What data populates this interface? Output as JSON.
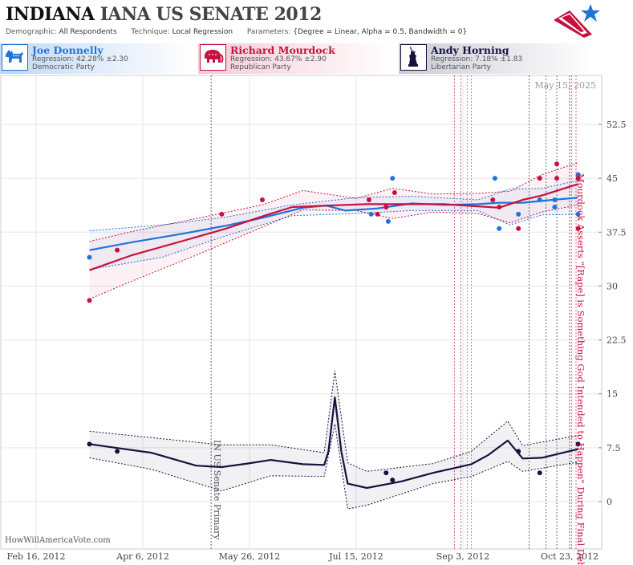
{
  "header": {
    "state": "INDIANA",
    "race": "IANA US SENATE 2012",
    "demographic_label": "Demographic:",
    "demographic_value": "All Respondents",
    "technique_label": "Technique:",
    "technique_value": "Local Regression",
    "parameters_label": "Parameters:",
    "parameters_value": "{Degree = Linear, Alpha = 0.5, Bandwidth = 0}"
  },
  "candidates": [
    {
      "name": "Joe Donnelly",
      "regression": "Regression: 42.28% ±2.30",
      "party": "Democratic Party",
      "color": "#1f74d9",
      "icon": "donkey-icon"
    },
    {
      "name": "Richard Mourdock",
      "regression": "Regression: 43.67% ±2.90",
      "party": "Republican Party",
      "color": "#c8103e",
      "icon": "elephant-icon"
    },
    {
      "name": "Andy Horning",
      "regression": "Regression: 7.18% ±1.83",
      "party": "Libertarian Party",
      "color": "#14143e",
      "icon": "statue-of-liberty-icon"
    }
  ],
  "watermark": "HowWillAmericaVote.com",
  "date_stamp": "May 15, 2025",
  "chart_data": {
    "type": "line",
    "x_axis": {
      "type": "date",
      "range": [
        "2012-02-16",
        "2012-11-04"
      ],
      "tick_labels": [
        "Feb 16, 2012",
        "Apr 6, 2012",
        "May 26, 2012",
        "Jul 15, 2012",
        "Sep 3, 2012",
        "Oct 23, 2012"
      ],
      "ticks": [
        "2012-02-16",
        "2012-04-06",
        "2012-05-26",
        "2012-07-15",
        "2012-09-03",
        "2012-10-23"
      ]
    },
    "y_axis": {
      "range": [
        -4.5,
        59
      ],
      "tick_values": [
        0,
        7.5,
        15,
        22.5,
        30,
        37.5,
        45,
        52.5
      ],
      "tick_labels": [
        "0",
        "7.5",
        "15",
        "22.5",
        "30",
        "37.5",
        "45",
        "52.5"
      ],
      "position": "right"
    },
    "grid": true,
    "events": [
      {
        "date": "2012-05-08",
        "label": "IN US Senate Primary",
        "color": "#444444"
      },
      {
        "date": "2012-10-23",
        "label": "Mourdock Asserts \"[Rape] is Something God Intended to Happen\" During Final Debate",
        "color": "#c8103e"
      }
    ],
    "poll_dates": [
      "2012-08-30",
      "2012-09-02",
      "2012-09-05",
      "2012-09-07",
      "2012-10-04",
      "2012-10-12",
      "2012-10-17",
      "2012-10-24",
      "2012-10-26"
    ],
    "series": [
      {
        "name": "Joe Donnelly",
        "color": "#1f74d9",
        "points": [
          [
            "2012-03-12",
            34
          ],
          [
            "2012-07-22",
            40
          ],
          [
            "2012-07-29",
            41
          ],
          [
            "2012-07-30",
            39
          ],
          [
            "2012-08-01",
            45
          ],
          [
            "2012-09-18",
            45
          ],
          [
            "2012-09-20",
            38
          ],
          [
            "2012-09-29",
            40
          ],
          [
            "2012-10-09",
            42
          ],
          [
            "2012-10-16",
            42
          ],
          [
            "2012-10-16",
            41
          ],
          [
            "2012-10-27",
            45.5
          ],
          [
            "2012-10-27",
            40
          ]
        ],
        "trend": [
          [
            "2012-03-12",
            35
          ],
          [
            "2012-04-01",
            36.1
          ],
          [
            "2012-04-25",
            37.3
          ],
          [
            "2012-05-15",
            38.4
          ],
          [
            "2012-06-01",
            39.5
          ],
          [
            "2012-06-20",
            40.9
          ],
          [
            "2012-07-01",
            41.2
          ],
          [
            "2012-07-10",
            40.5
          ],
          [
            "2012-07-25",
            40.8
          ],
          [
            "2012-08-10",
            41.5
          ],
          [
            "2012-08-25",
            41.3
          ],
          [
            "2012-09-10",
            41.4
          ],
          [
            "2012-09-20",
            41.6
          ],
          [
            "2012-10-01",
            41.6
          ],
          [
            "2012-10-15",
            42
          ],
          [
            "2012-10-27",
            42.3
          ]
        ],
        "band_upper": [
          [
            "2012-03-12",
            37.7
          ],
          [
            "2012-04-15",
            38.5
          ],
          [
            "2012-05-15",
            39.6
          ],
          [
            "2012-06-15",
            41.3
          ],
          [
            "2012-07-15",
            42.3
          ],
          [
            "2012-08-10",
            42.5
          ],
          [
            "2012-09-10",
            42
          ],
          [
            "2012-09-25",
            43.5
          ],
          [
            "2012-10-10",
            43.6
          ],
          [
            "2012-10-27",
            44.7
          ]
        ],
        "band_lower": [
          [
            "2012-03-12",
            32.3
          ],
          [
            "2012-04-15",
            34
          ],
          [
            "2012-05-15",
            37
          ],
          [
            "2012-06-15",
            39.8
          ],
          [
            "2012-07-15",
            40.1
          ],
          [
            "2012-08-10",
            40.5
          ],
          [
            "2012-09-10",
            40.5
          ],
          [
            "2012-09-25",
            38.5
          ],
          [
            "2012-10-10",
            39.9
          ],
          [
            "2012-10-27",
            40
          ]
        ]
      },
      {
        "name": "Richard Mourdock",
        "color": "#c8103e",
        "points": [
          [
            "2012-03-12",
            28
          ],
          [
            "2012-03-25",
            35
          ],
          [
            "2012-05-13",
            40
          ],
          [
            "2012-06-01",
            42
          ],
          [
            "2012-07-21",
            42
          ],
          [
            "2012-07-25",
            40
          ],
          [
            "2012-07-29",
            41
          ],
          [
            "2012-08-02",
            43
          ],
          [
            "2012-09-17",
            42
          ],
          [
            "2012-09-20",
            41
          ],
          [
            "2012-09-29",
            38
          ],
          [
            "2012-10-09",
            45
          ],
          [
            "2012-10-17",
            47
          ],
          [
            "2012-10-17",
            45
          ],
          [
            "2012-10-27",
            45
          ],
          [
            "2012-10-27",
            38
          ]
        ],
        "trend": [
          [
            "2012-03-12",
            32.2
          ],
          [
            "2012-04-01",
            34.3
          ],
          [
            "2012-04-25",
            36.3
          ],
          [
            "2012-05-15",
            38
          ],
          [
            "2012-06-01",
            39.7
          ],
          [
            "2012-06-15",
            41
          ],
          [
            "2012-07-01",
            41.2
          ],
          [
            "2012-07-20",
            41.4
          ],
          [
            "2012-08-10",
            41.4
          ],
          [
            "2012-08-25",
            41.4
          ],
          [
            "2012-09-10",
            41.1
          ],
          [
            "2012-09-20",
            40.9
          ],
          [
            "2012-10-01",
            42
          ],
          [
            "2012-10-10",
            42.6
          ],
          [
            "2012-10-27",
            44.2
          ]
        ],
        "band_upper": [
          [
            "2012-03-12",
            36.2
          ],
          [
            "2012-04-01",
            37.6
          ],
          [
            "2012-05-01",
            39.4
          ],
          [
            "2012-06-01",
            41.3
          ],
          [
            "2012-06-20",
            43.3
          ],
          [
            "2012-07-15",
            42.2
          ],
          [
            "2012-08-01",
            43.6
          ],
          [
            "2012-08-20",
            42.8
          ],
          [
            "2012-09-10",
            42.9
          ],
          [
            "2012-09-25",
            43.2
          ],
          [
            "2012-10-10",
            45.5
          ],
          [
            "2012-10-27",
            47.2
          ]
        ],
        "band_lower": [
          [
            "2012-03-12",
            28.2
          ],
          [
            "2012-04-01",
            30.7
          ],
          [
            "2012-05-01",
            34.3
          ],
          [
            "2012-06-01",
            38.2
          ],
          [
            "2012-06-20",
            40.6
          ],
          [
            "2012-07-15",
            40.5
          ],
          [
            "2012-08-01",
            39.4
          ],
          [
            "2012-08-20",
            40.3
          ],
          [
            "2012-09-10",
            40.1
          ],
          [
            "2012-09-25",
            38.8
          ],
          [
            "2012-10-10",
            40.3
          ],
          [
            "2012-10-27",
            41.3
          ]
        ]
      },
      {
        "name": "Andy Horning",
        "color": "#14143e",
        "points": [
          [
            "2012-03-12",
            8
          ],
          [
            "2012-03-25",
            7
          ],
          [
            "2012-07-29",
            4
          ],
          [
            "2012-08-01",
            3
          ],
          [
            "2012-09-29",
            7
          ],
          [
            "2012-10-09",
            4
          ],
          [
            "2012-10-27",
            8
          ]
        ],
        "trend": [
          [
            "2012-03-12",
            8
          ],
          [
            "2012-04-10",
            6.8
          ],
          [
            "2012-05-01",
            5
          ],
          [
            "2012-05-13",
            4.8
          ],
          [
            "2012-05-25",
            5.3
          ],
          [
            "2012-06-05",
            5.8
          ],
          [
            "2012-06-20",
            5.2
          ],
          [
            "2012-06-30",
            5.1
          ],
          [
            "2012-07-02",
            7
          ],
          [
            "2012-07-05",
            14.5
          ],
          [
            "2012-07-08",
            7
          ],
          [
            "2012-07-11",
            2.5
          ],
          [
            "2012-07-20",
            1.9
          ],
          [
            "2012-08-05",
            2.8
          ],
          [
            "2012-08-20",
            4
          ],
          [
            "2012-09-07",
            5.2
          ],
          [
            "2012-09-15",
            6.5
          ],
          [
            "2012-09-24",
            8.5
          ],
          [
            "2012-10-01",
            6
          ],
          [
            "2012-10-10",
            6.1
          ],
          [
            "2012-10-27",
            7.3
          ]
        ],
        "band_upper": [
          [
            "2012-03-12",
            9.8
          ],
          [
            "2012-04-10",
            8.9
          ],
          [
            "2012-05-13",
            7.9
          ],
          [
            "2012-06-05",
            7.9
          ],
          [
            "2012-06-30",
            6.8
          ],
          [
            "2012-07-05",
            18.2
          ],
          [
            "2012-07-11",
            5.4
          ],
          [
            "2012-07-20",
            4.2
          ],
          [
            "2012-08-20",
            5.3
          ],
          [
            "2012-09-07",
            7
          ],
          [
            "2012-09-24",
            11.2
          ],
          [
            "2012-10-01",
            7.8
          ],
          [
            "2012-10-27",
            9.2
          ]
        ],
        "band_lower": [
          [
            "2012-03-12",
            6.1
          ],
          [
            "2012-04-10",
            4.5
          ],
          [
            "2012-05-13",
            1.5
          ],
          [
            "2012-06-05",
            3.6
          ],
          [
            "2012-06-30",
            3.5
          ],
          [
            "2012-07-05",
            10.8
          ],
          [
            "2012-07-11",
            -1
          ],
          [
            "2012-07-20",
            -0.5
          ],
          [
            "2012-08-20",
            2.5
          ],
          [
            "2012-09-07",
            3.5
          ],
          [
            "2012-09-24",
            5.6
          ],
          [
            "2012-10-01",
            4.2
          ],
          [
            "2012-10-27",
            5.5
          ]
        ]
      }
    ]
  }
}
